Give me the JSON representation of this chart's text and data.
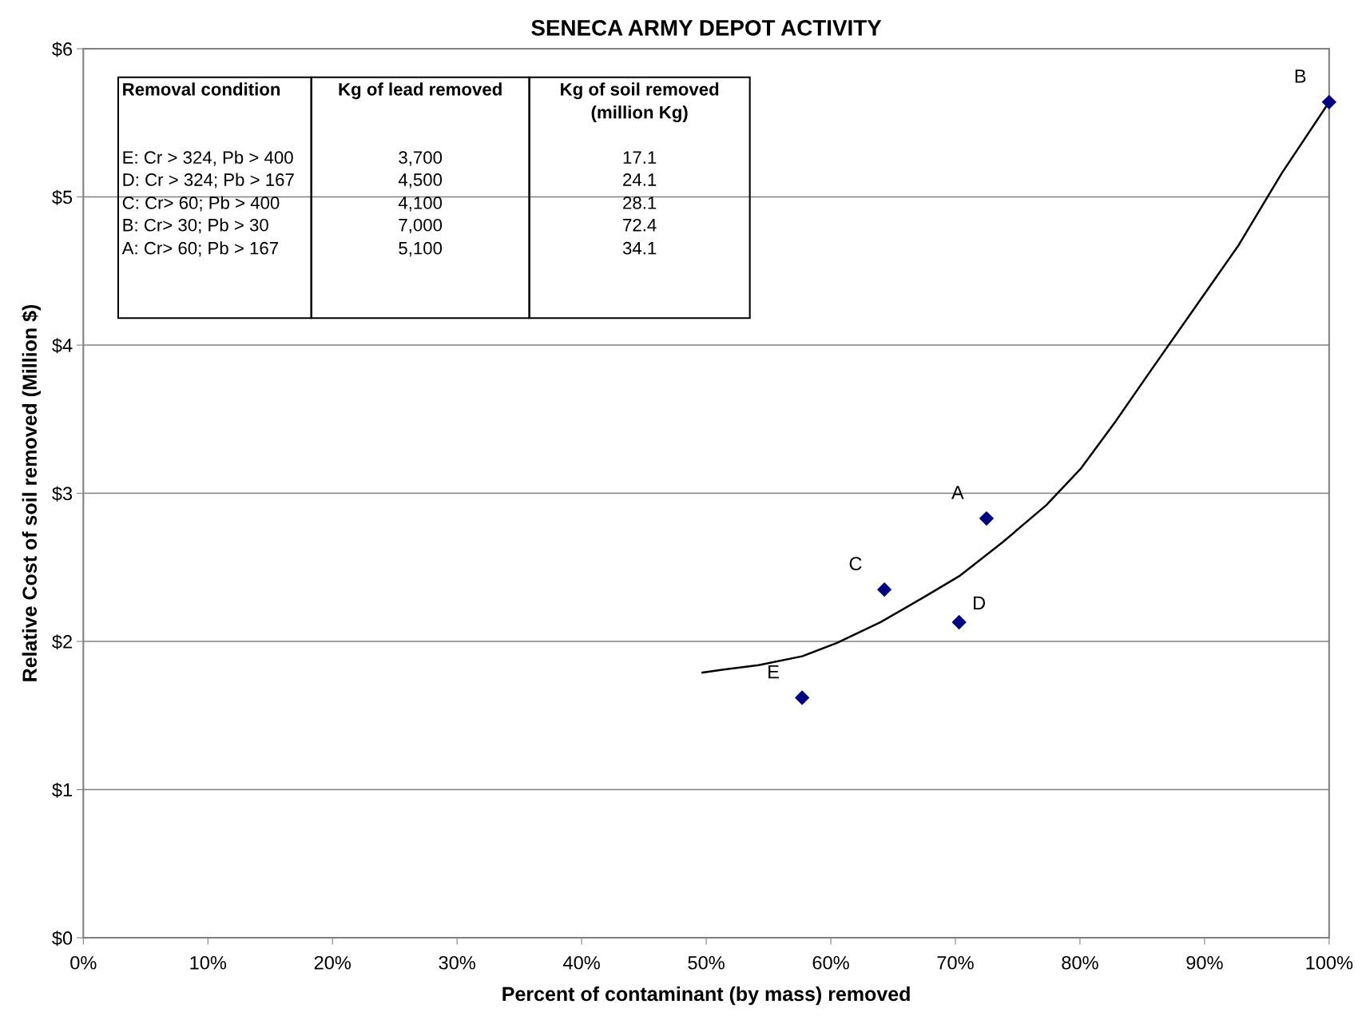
{
  "chart_data": {
    "type": "scatter",
    "title": "SENECA ARMY DEPOT ACTIVITY",
    "xlabel": "Percent of contaminant (by mass) removed",
    "ylabel": "Relative Cost of soil removed (Million $)",
    "series": [
      {
        "color": "#000080",
        "marker": "diamond",
        "x": [
          57.7,
          64.3,
          70.3,
          72.5,
          100
        ],
        "values": [
          1.62,
          2.35,
          2.13,
          2.83,
          5.64
        ]
      },
      {
        "type": "line",
        "color": "#000000",
        "marker": "none",
        "line_style": "solid",
        "x": [
          49.7,
          51.4,
          54.2,
          57.7,
          60.5,
          64,
          67.5,
          70.3,
          73.8,
          77.3,
          80.1,
          82.9,
          85.7,
          89.2,
          92.7,
          96.2,
          100
        ],
        "values": [
          1.79,
          1.81,
          1.84,
          1.9,
          1.99,
          2.13,
          2.3,
          2.44,
          2.67,
          2.92,
          3.17,
          3.49,
          3.83,
          4.25,
          4.67,
          5.16,
          5.64
        ]
      }
    ],
    "xlim": [
      0,
      100
    ],
    "xticks": [
      {
        "value": 0,
        "label": "0%"
      },
      {
        "value": 10,
        "label": "10%"
      },
      {
        "value": 20,
        "label": "20%"
      },
      {
        "value": 30,
        "label": "30%"
      },
      {
        "value": 40,
        "label": "40%"
      },
      {
        "value": 50,
        "label": "50%"
      },
      {
        "value": 60,
        "label": "60%"
      },
      {
        "value": 70,
        "label": "70%"
      },
      {
        "value": 80,
        "label": "80%"
      },
      {
        "value": 90,
        "label": "90%"
      },
      {
        "value": 100,
        "label": "100%"
      }
    ],
    "ylim": [
      0,
      6
    ],
    "yticks": [
      {
        "value": 0,
        "label": "$0"
      },
      {
        "value": 1,
        "label": "$1"
      },
      {
        "value": 2,
        "label": "$2"
      },
      {
        "value": 3,
        "label": "$3"
      },
      {
        "value": 4,
        "label": "$4"
      },
      {
        "value": 5,
        "label": "$5"
      },
      {
        "value": 6,
        "label": "$6"
      }
    ],
    "grid": "y",
    "legend": false,
    "annotations": [
      {
        "text": "E",
        "x": 57.7,
        "y": 1.62
      },
      {
        "text": "C",
        "x": 64.3,
        "y": 2.35
      },
      {
        "text": "D",
        "x": 70.3,
        "y": 2.13
      },
      {
        "text": "A",
        "x": 72.5,
        "y": 2.83
      },
      {
        "text": "B",
        "x": 100,
        "y": 5.64
      },
      "Removal condition",
      "Kg of lead removed",
      "Kg of soil removed\n(million Kg)",
      "E: Cr > 324, Pb > 400",
      "3,700",
      "17.1",
      "D: Cr > 324; Pb > 167",
      "4,500",
      "24.1",
      "C: Cr> 60; Pb > 400",
      "4,100",
      "28.1",
      "B: Cr> 30; Pb > 30",
      "7,000",
      "72.4",
      "A: Cr> 60; Pb > 167",
      "5,100",
      "34.1"
    ]
  }
}
